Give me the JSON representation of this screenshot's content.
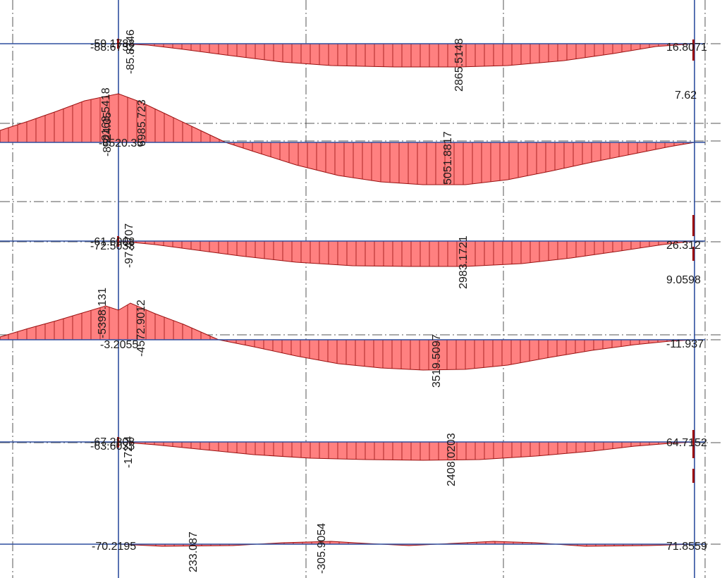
{
  "colors": {
    "fill": "#ff8080",
    "stroke": "#9a1010",
    "member": "#2f4f9f",
    "grid": "#555555",
    "text": "#1a1a1a"
  },
  "diagram": {
    "type": "bending-moment-diagram",
    "beams": [
      {
        "id": "beam-1",
        "ordinates": [
          {
            "pos": 0.0,
            "value": 0
          },
          {
            "pos": 0.2,
            "value": -2200
          },
          {
            "pos": 0.35,
            "value": -2850
          },
          {
            "pos": 0.4,
            "value": -2865.5148
          },
          {
            "pos": 0.6,
            "value": -2865.5148
          },
          {
            "pos": 0.8,
            "value": -1900
          },
          {
            "pos": 1.0,
            "value": 0
          }
        ],
        "labels": [
          "-59.1788",
          "-88.6752",
          "-85.8746",
          "2865.5148",
          "16.8071"
        ]
      },
      {
        "id": "beam-2",
        "ordinates": [
          {
            "pos": 0.0,
            "value": 0
          },
          {
            "pos": 0.18,
            "value": -2500
          },
          {
            "pos": 0.35,
            "value": -4700
          },
          {
            "pos": 0.45,
            "value": -5051.8817
          },
          {
            "pos": 0.6,
            "value": -4700
          },
          {
            "pos": 0.8,
            "value": -2900
          },
          {
            "pos": 1.0,
            "value": 0
          }
        ],
        "left_peak": "8168.5418",
        "labels": [
          "8168.5418",
          "-8520.35",
          "-8524.05",
          "6985.723",
          "5051.8817",
          "7.62"
        ]
      },
      {
        "id": "beam-3",
        "ordinates": [
          {
            "pos": 0.0,
            "value": 0
          },
          {
            "pos": 0.2,
            "value": -2300
          },
          {
            "pos": 0.4,
            "value": -2983.1721
          },
          {
            "pos": 0.6,
            "value": -2983.1721
          },
          {
            "pos": 0.8,
            "value": -2000
          },
          {
            "pos": 1.0,
            "value": 0
          }
        ],
        "labels": [
          "-61.6008",
          "-72.5033",
          "-97.4707",
          "2983.1721",
          "26.312",
          "9.0598"
        ]
      },
      {
        "id": "beam-4",
        "ordinates": [
          {
            "pos": 0.0,
            "value": 0
          },
          {
            "pos": 0.2,
            "value": -2500
          },
          {
            "pos": 0.38,
            "value": -3519.5097
          },
          {
            "pos": 0.6,
            "value": -3400
          },
          {
            "pos": 0.8,
            "value": -2300
          },
          {
            "pos": 1.0,
            "value": 0
          }
        ],
        "left_peak": "-5398.131",
        "labels": [
          "-5398.131",
          "-3.2055",
          "-4572.9012",
          "3519.5097",
          "-11.937"
        ]
      },
      {
        "id": "beam-5",
        "ordinates": [
          {
            "pos": 0.0,
            "value": 0
          },
          {
            "pos": 0.2,
            "value": -1700
          },
          {
            "pos": 0.4,
            "value": -2408.0203
          },
          {
            "pos": 0.6,
            "value": -2408.0203
          },
          {
            "pos": 0.8,
            "value": -1600
          },
          {
            "pos": 1.0,
            "value": 0
          }
        ],
        "labels": [
          "-67.2808",
          "-63.6035",
          "-172.4",
          "2408.0203",
          "64.7152"
        ]
      },
      {
        "id": "beam-6",
        "labels": [
          "-70.2195",
          "233.087",
          "-305.9054",
          "71.8559"
        ]
      }
    ]
  },
  "labels": {
    "b1_left_a": "-59.1788",
    "b1_left_b": "-88.6752",
    "b1_rot_left": "-85.8746",
    "b1_mid": "2865.5148",
    "b1_right": "16.8071",
    "b2_peak": "8168.5418",
    "b2_left_a": "-8520.35",
    "b2_left_b": "-8524.05",
    "b2_rot": "6985.723",
    "b2_mid": "5051.8817",
    "b2_right": "7.62",
    "b3_left_a": "-61.6008",
    "b3_left_b": "-72.5033",
    "b3_rot": "-97.4707",
    "b3_mid": "2983.1721",
    "b3_right": "26.312",
    "b3_right2": "9.0598",
    "b4_peak": "-5398.131",
    "b4_left": "-3.2055",
    "b4_rot": "-4572.9012",
    "b4_mid": "3519.5097",
    "b4_right": "-11.937",
    "b5_left_a": "-67.2808",
    "b5_left_b": "-63.6035",
    "b5_rot": "-172.4",
    "b5_mid": "2408.0203",
    "b5_right": "64.7152",
    "b6_left": "-70.2195",
    "b6_a": "233.087",
    "b6_b": "-305.9054",
    "b6_right": "71.8559"
  }
}
